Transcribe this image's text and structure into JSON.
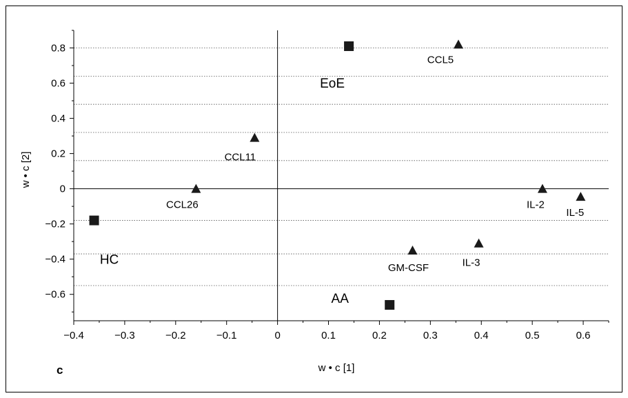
{
  "chart_data": {
    "type": "scatter",
    "panel_label": "c",
    "xlabel": "w • c [1]",
    "ylabel": "w • c [2]",
    "xlim": [
      -0.4,
      0.65
    ],
    "ylim": [
      -0.75,
      0.9
    ],
    "x_ticks": [
      -0.4,
      -0.3,
      -0.2,
      -0.1,
      0,
      0.1,
      0.2,
      0.3,
      0.4,
      0.5,
      0.6
    ],
    "x_tick_labels": [
      "−0.4",
      "−0.3",
      "−0.2",
      "−0.1",
      "0",
      "0.1",
      "0.2",
      "0.3",
      "0.4",
      "0.5",
      "0.6"
    ],
    "y_ticks": [
      -0.6,
      -0.4,
      -0.2,
      0,
      0.2,
      0.4,
      0.6,
      0.8
    ],
    "y_tick_labels": [
      "−0.6",
      "−0.4",
      "−0.2",
      "0",
      "0.2",
      "0.4",
      "0.6",
      "0.8"
    ],
    "grid_y": [
      -0.55,
      -0.37,
      -0.18,
      0,
      0.16,
      0.32,
      0.48,
      0.64,
      0.8
    ],
    "series": [
      {
        "marker": "square",
        "points": [
          {
            "label": "EoE",
            "x": 0.14,
            "y": 0.81
          },
          {
            "label": "HC",
            "x": -0.36,
            "y": -0.18
          },
          {
            "label": "AA",
            "x": 0.22,
            "y": -0.66
          }
        ]
      },
      {
        "marker": "triangle",
        "points": [
          {
            "label": "CCL5",
            "x": 0.355,
            "y": 0.82
          },
          {
            "label": "CCL11",
            "x": -0.045,
            "y": 0.29
          },
          {
            "label": "CCL26",
            "x": -0.16,
            "y": 0.0
          },
          {
            "label": "IL-2",
            "x": 0.52,
            "y": 0.0
          },
          {
            "label": "IL-5",
            "x": 0.595,
            "y": -0.045
          },
          {
            "label": "GM-CSF",
            "x": 0.265,
            "y": -0.35
          },
          {
            "label": "IL-3",
            "x": 0.395,
            "y": -0.31
          }
        ]
      }
    ]
  }
}
